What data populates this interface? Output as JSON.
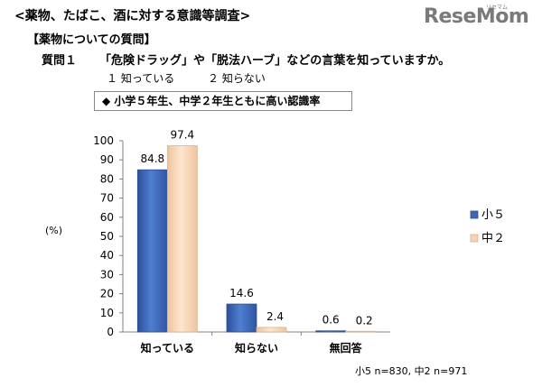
{
  "header": {
    "survey_title": "<薬物、たばこ、酒に対する意識等調査>",
    "section_title": "【薬物についての質問】",
    "question_number": "質問１",
    "question_text": "「危険ドラッグ」や「脱法ハーブ」などの言葉を知っていますか。",
    "option1": "１ 知っている",
    "option2": "２ 知らない",
    "callout": "◆ 小学５年生、中学２年生ともに高い認識率"
  },
  "logo": {
    "text_main": "ResеMom",
    "text_sub": "リセマム"
  },
  "footnote": "小5 n=830, 中2 n=971",
  "colors": {
    "series1": "#3f67b5",
    "series2": "#f6d2b0",
    "axis": "#808080"
  },
  "chart_data": {
    "type": "bar",
    "categories": [
      "知っている",
      "知らない",
      "無回答"
    ],
    "series": [
      {
        "name": "小５",
        "values": [
          84.8,
          14.6,
          0.6
        ],
        "labels": [
          "84.8",
          "14.6",
          "0.6"
        ]
      },
      {
        "name": "中２",
        "values": [
          97.4,
          2.4,
          0.2
        ],
        "labels": [
          "97.4",
          "2.4",
          "0.2"
        ]
      }
    ],
    "ylabel": "(%)",
    "ylim": [
      0,
      100
    ],
    "yticks": [
      0,
      10,
      20,
      30,
      40,
      50,
      60,
      70,
      80,
      90,
      100
    ],
    "legend_position": "right",
    "grid": false
  }
}
